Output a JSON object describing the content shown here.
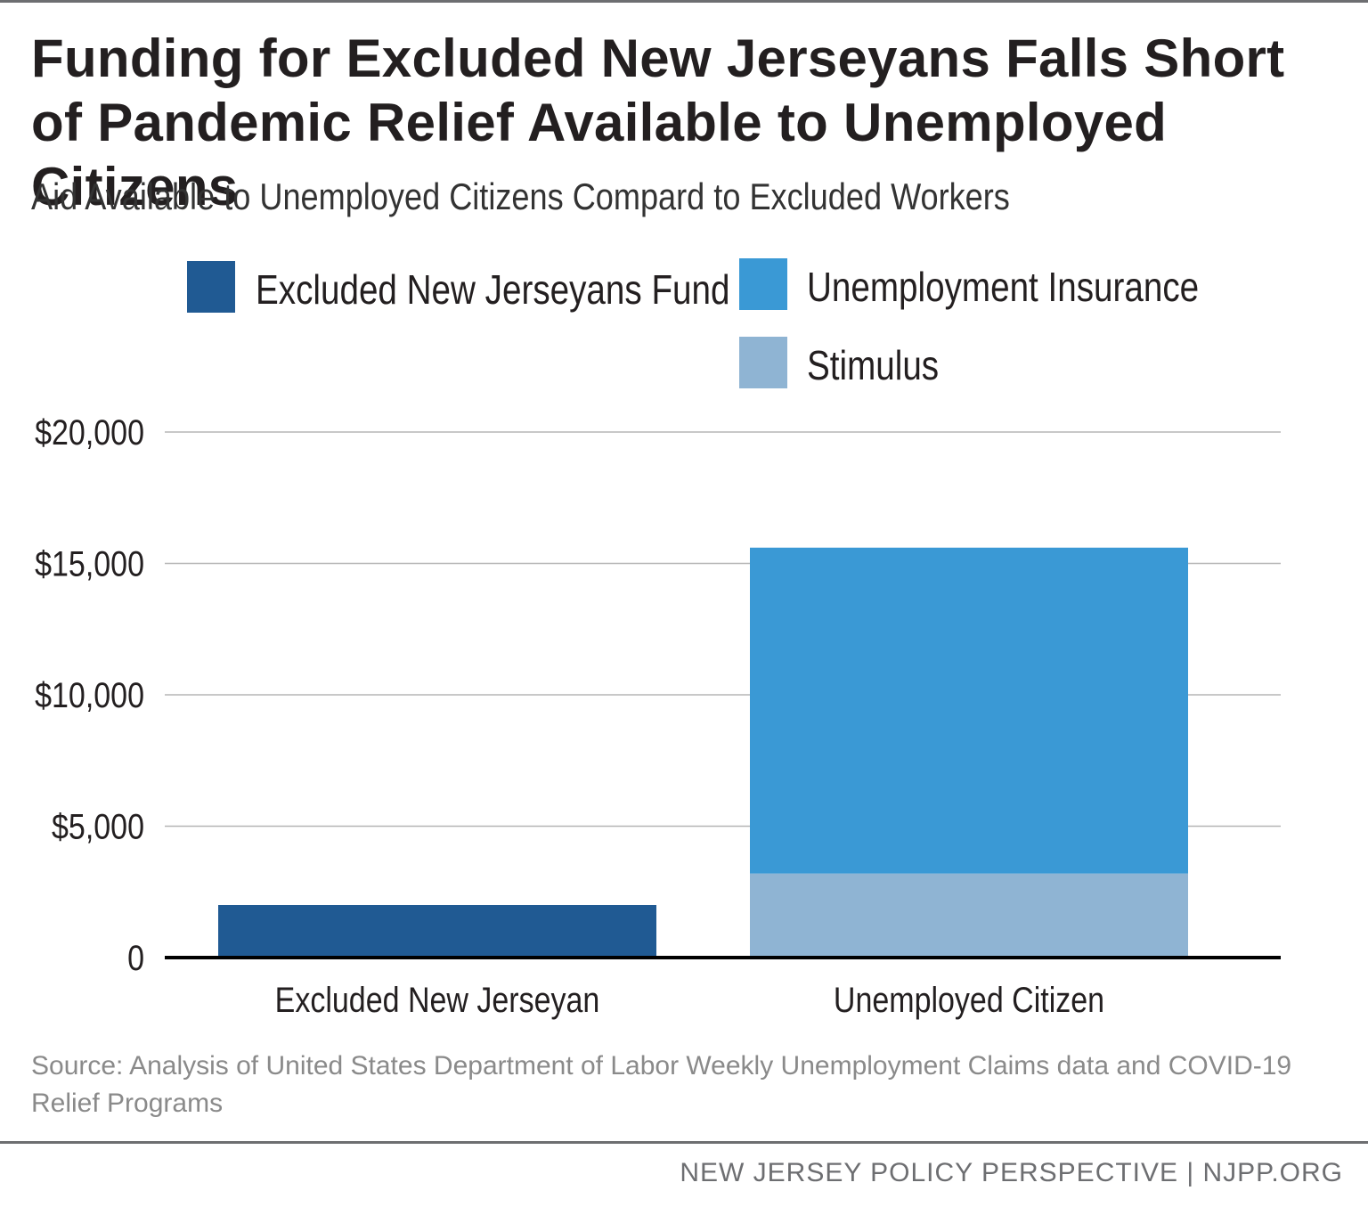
{
  "title": "Funding for Excluded New Jerseyans Falls Short of Pandemic Relief Available to Unemployed Citizens",
  "subtitle": "Aid Available to Unemployed Citizens Compard to Excluded Workers",
  "source": "Source: Analysis of United States Department of Labor Weekly Unemployment Claims data and COVID-19 Relief Programs",
  "footer": "NEW JERSEY POLICY PERSPECTIVE | NJPP.ORG",
  "colors": {
    "excluded_fund": "#205a93",
    "unemployment_insurance": "#3a99d5",
    "stimulus": "#8fb4d3",
    "gridline": "#b5b5b5",
    "axis": "#000000"
  },
  "chart_data": {
    "type": "bar",
    "stacked": true,
    "title": "Funding for Excluded New Jerseyans Falls Short of Pandemic Relief Available to Unemployed Citizens",
    "subtitle": "Aid Available to Unemployed Citizens Compard to Excluded Workers",
    "xlabel": "",
    "ylabel": "",
    "categories": [
      "Excluded New Jerseyan",
      "Unemployed Citizen"
    ],
    "series": [
      {
        "name": "Excluded New Jerseyans Fund",
        "color": "#205a93",
        "values": [
          2000,
          0
        ]
      },
      {
        "name": "Stimulus",
        "color": "#8fb4d3",
        "values": [
          0,
          3200
        ]
      },
      {
        "name": "Unemployment Insurance",
        "color": "#3a99d5",
        "values": [
          0,
          12400
        ]
      }
    ],
    "legend": [
      {
        "name": "Excluded New Jerseyans Fund",
        "color": "#205a93"
      },
      {
        "name": "Unemployment Insurance",
        "color": "#3a99d5"
      },
      {
        "name": "Stimulus",
        "color": "#8fb4d3"
      }
    ],
    "legend_position": "top",
    "yticks": [
      0,
      5000,
      10000,
      15000,
      20000
    ],
    "ytick_labels": [
      "0",
      "$5,000",
      "$10,000",
      "$15,000",
      "$20,000"
    ],
    "ylim": [
      0,
      20000
    ],
    "grid": true
  }
}
